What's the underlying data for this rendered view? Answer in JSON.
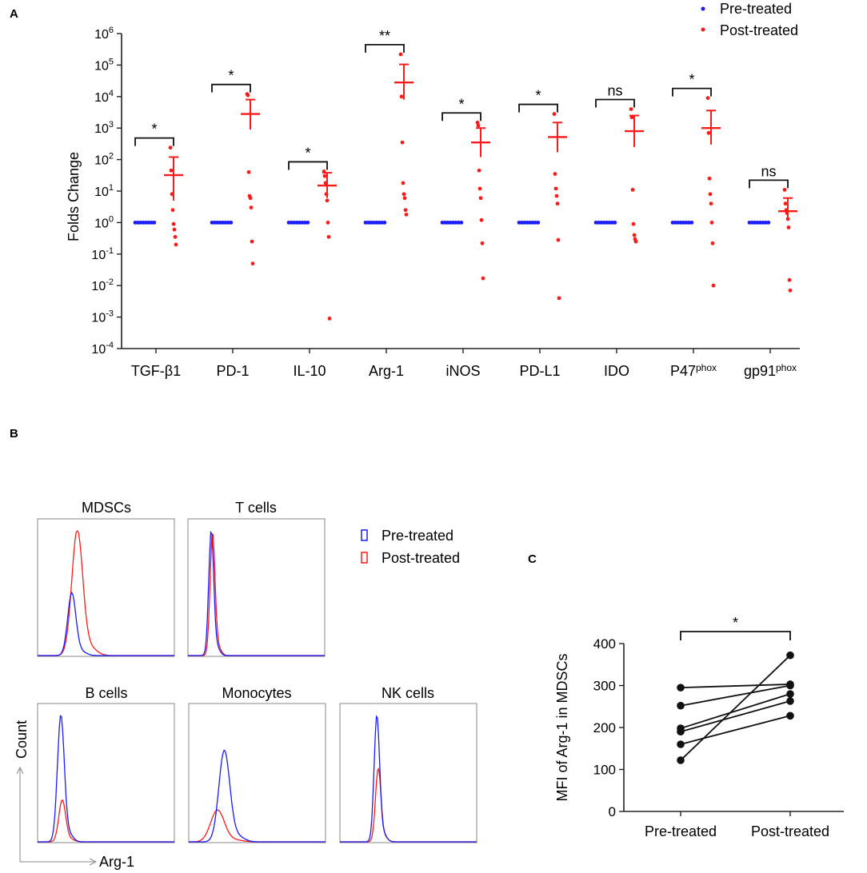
{
  "colors": {
    "pre": "#1a1aff",
    "post": "#ff1a1a",
    "axis": "#222222",
    "frame": "#888888",
    "bracket": "#111111",
    "paired": "#111111"
  },
  "panels": {
    "a": "A",
    "b": "B",
    "c": "C"
  },
  "chart_data": [
    {
      "panel": "A",
      "type": "scatter",
      "scale": "log10",
      "ylabel": "Folds Change",
      "ylim": [
        0.0001,
        1000000
      ],
      "yticks": [
        {
          "exp": 6,
          "base": "10",
          "sup": "6"
        },
        {
          "exp": 5,
          "base": "10",
          "sup": "5"
        },
        {
          "exp": 4,
          "base": "10",
          "sup": "4"
        },
        {
          "exp": 3,
          "base": "10",
          "sup": "3"
        },
        {
          "exp": 2,
          "base": "10",
          "sup": "2"
        },
        {
          "exp": 1,
          "base": "10",
          "sup": "1"
        },
        {
          "exp": 0,
          "base": "10",
          "sup": "0"
        },
        {
          "exp": -1,
          "base": "10",
          "sup": "-1"
        },
        {
          "exp": -2,
          "base": "10",
          "sup": "-2"
        },
        {
          "exp": -3,
          "base": "10",
          "sup": "-3"
        },
        {
          "exp": -4,
          "base": "10",
          "sup": "-4"
        }
      ],
      "legend": {
        "position": "top-right",
        "entries": [
          "Pre-treated",
          "Post-treated"
        ]
      },
      "categories": [
        {
          "label": "TGF-β1",
          "sup": "",
          "sig": "*",
          "pre": [
            1,
            1,
            1,
            1,
            1,
            1,
            1,
            1
          ],
          "post": [
            240,
            45,
            8,
            2.5,
            0.9,
            0.6,
            0.35,
            0.2
          ],
          "mean": 32,
          "sem_low": 5,
          "sem_high": 120
        },
        {
          "label": "PD-1",
          "sup": "",
          "sig": "*",
          "pre": [
            1,
            1,
            1,
            1,
            1,
            1,
            1,
            1
          ],
          "post": [
            12000,
            11000,
            40,
            7,
            6,
            3,
            0.25,
            0.05
          ],
          "mean": 2800,
          "sem_low": 900,
          "sem_high": 8000
        },
        {
          "label": "IL-10",
          "sup": "",
          "sig": "*",
          "pre": [
            1,
            1,
            1,
            1,
            1,
            1,
            1,
            1
          ],
          "post": [
            42,
            30,
            18,
            8,
            5,
            1,
            0.35,
            0.0009
          ],
          "mean": 15,
          "sem_low": 6,
          "sem_high": 38
        },
        {
          "label": "Arg-1",
          "sup": "",
          "sig": "**",
          "pre": [
            1,
            1,
            1,
            1,
            1,
            1,
            1,
            1
          ],
          "post": [
            220000,
            10000,
            350,
            18,
            8,
            6,
            2.5,
            1.8
          ],
          "mean": 28000,
          "sem_low": 8000,
          "sem_high": 105000
        },
        {
          "label": "iNOS",
          "sup": "",
          "sig": "*",
          "pre": [
            1,
            1,
            1,
            1,
            1,
            1,
            1,
            1
          ],
          "post": [
            1500,
            1200,
            45,
            12,
            6,
            1.2,
            0.22,
            0.017
          ],
          "mean": 350,
          "sem_low": 120,
          "sem_high": 1000
        },
        {
          "label": "PD-L1",
          "sup": "",
          "sig": "*",
          "pre": [
            1,
            1,
            1,
            1,
            1,
            1,
            1,
            1
          ],
          "post": [
            2800,
            35,
            12,
            7,
            4,
            0.28,
            0.004
          ],
          "mean": 520,
          "sem_low": 170,
          "sem_high": 1500
        },
        {
          "label": "IDO",
          "sup": "",
          "sig": "ns",
          "pre": [
            1,
            1,
            1,
            1,
            1,
            1,
            1,
            1
          ],
          "post": [
            4000,
            2200,
            11,
            0.9,
            0.4,
            0.3,
            0.25
          ],
          "mean": 800,
          "sem_low": 250,
          "sem_high": 2500
        },
        {
          "label": "P47",
          "sup": "phox",
          "sig": "*",
          "pre": [
            1,
            1,
            1,
            1,
            1,
            1,
            1,
            1
          ],
          "post": [
            9000,
            700,
            25,
            8,
            4,
            1,
            0.22,
            0.01
          ],
          "mean": 1000,
          "sem_low": 300,
          "sem_high": 3600
        },
        {
          "label": "gp91",
          "sup": "phox",
          "sig": "ns",
          "pre": [
            1,
            1,
            1,
            1,
            1,
            1,
            1,
            1
          ],
          "post": [
            11,
            4,
            2.5,
            2,
            1.3,
            0.7,
            0.015,
            0.007
          ],
          "mean": 2.3,
          "sem_low": 1.3,
          "sem_high": 6
        }
      ]
    },
    {
      "panel": "B",
      "type": "histogram",
      "ylabel": "Count",
      "xlabel": "Arg-1",
      "legend": {
        "entries": [
          "Pre-treated",
          "Post-treated"
        ]
      },
      "cells": [
        {
          "label": "MDSCs",
          "pre": {
            "mu": 0.25,
            "sigma": 0.03,
            "peak": 0.5
          },
          "post": {
            "mu": 0.29,
            "sigma": 0.04,
            "peak": 1.0
          }
        },
        {
          "label": "T cells",
          "pre": {
            "mu": 0.17,
            "sigma": 0.018,
            "peak": 1.0
          },
          "post": {
            "mu": 0.18,
            "sigma": 0.018,
            "peak": 0.98
          }
        },
        {
          "label": "B cells",
          "pre": {
            "mu": 0.17,
            "sigma": 0.025,
            "peak": 1.0
          },
          "post": {
            "mu": 0.18,
            "sigma": 0.025,
            "peak": 0.33
          }
        },
        {
          "label": "Monocytes",
          "pre": {
            "mu": 0.26,
            "sigma": 0.04,
            "peak": 0.72
          },
          "post": {
            "mu": 0.21,
            "sigma": 0.05,
            "peak": 0.25
          }
        },
        {
          "label": "NK cells",
          "pre": {
            "mu": 0.27,
            "sigma": 0.02,
            "peak": 1.0
          },
          "post": {
            "mu": 0.28,
            "sigma": 0.02,
            "peak": 0.58
          }
        }
      ]
    },
    {
      "panel": "C",
      "type": "paired-scatter",
      "ylabel": "MFI of Arg-1 in MDSCs",
      "categories": [
        "Pre-treated",
        "Post-treated"
      ],
      "ylim": [
        0,
        400
      ],
      "yticks": [
        "0",
        "100",
        "200",
        "300",
        "400"
      ],
      "sig": "*",
      "pairs": [
        [
          295,
          303
        ],
        [
          252,
          300
        ],
        [
          198,
          280
        ],
        [
          190,
          263
        ],
        [
          160,
          228
        ],
        [
          122,
          372
        ]
      ]
    }
  ]
}
